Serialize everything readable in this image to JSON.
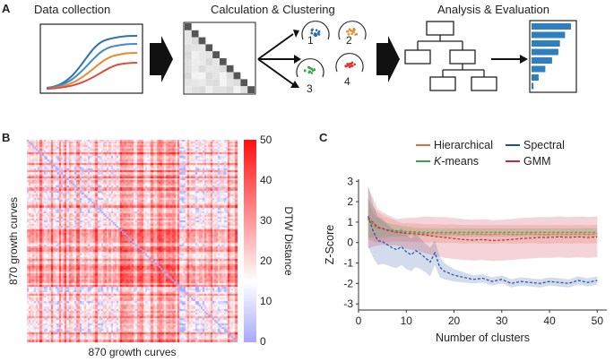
{
  "panelA": {
    "label": "A",
    "stages": [
      "Data collection",
      "Calculation & Clustering",
      "Analysis & Evaluation"
    ],
    "clusters": [
      {
        "id": "1",
        "color": "#2f6db5"
      },
      {
        "id": "2",
        "color": "#ea8a2a"
      },
      {
        "id": "3",
        "color": "#3aa84a"
      },
      {
        "id": "4",
        "color": "#e03030"
      }
    ],
    "curveColors": [
      "#2f6db5",
      "#3b8fc7",
      "#ea8a2a",
      "#e04a3a"
    ],
    "barColor": "#2f7fc0",
    "bars": [
      1.0,
      0.85,
      0.72,
      0.68,
      0.52,
      0.35,
      0.18,
      0.05
    ]
  },
  "panelB": {
    "label": "B",
    "xlabel": "870 growth curves",
    "ylabel": "870 growth curves",
    "colorbar": {
      "title": "DTW Distance",
      "ticks": [
        "50",
        "40",
        "30",
        "20",
        "10",
        "0"
      ],
      "low": "#a8a8ff",
      "mid": "#ffffff",
      "high": "#ff1010"
    }
  },
  "chart_data": {
    "type": "line",
    "title": "",
    "xlabel": "Number of clusters",
    "ylabel": "Z-Score",
    "xlim": [
      0,
      52
    ],
    "ylim": [
      -3.3,
      3.1
    ],
    "xticks": [
      "0",
      "10",
      "20",
      "30",
      "40",
      "50"
    ],
    "yticks": [
      "3",
      "2",
      "1",
      "0",
      "-1",
      "-2",
      "-3"
    ],
    "legend_label": "C",
    "series": [
      {
        "name": "Hierarchical",
        "italic": false,
        "color": "#e07040",
        "x": [
          2,
          3,
          4,
          5,
          6,
          7,
          8,
          9,
          10,
          12,
          14,
          16,
          18,
          20,
          22,
          24,
          26,
          28,
          30,
          32,
          34,
          36,
          38,
          40,
          42,
          44,
          46,
          48,
          50
        ],
        "y": [
          1.2,
          0.9,
          0.75,
          0.68,
          0.62,
          0.6,
          0.55,
          0.5,
          0.5,
          0.48,
          0.45,
          0.45,
          0.42,
          0.44,
          0.4,
          0.42,
          0.4,
          0.4,
          0.42,
          0.4,
          0.4,
          0.42,
          0.4,
          0.4,
          0.42,
          0.4,
          0.42,
          0.4,
          0.42
        ],
        "band": [
          1.0,
          0.85,
          0.75,
          0.65,
          0.6,
          0.55,
          0.5,
          0.45,
          0.45,
          0.45,
          0.45,
          0.45,
          0.45,
          0.45,
          0.45,
          0.45,
          0.45,
          0.45,
          0.45,
          0.45,
          0.45,
          0.45,
          0.45,
          0.45,
          0.45,
          0.45,
          0.45,
          0.45,
          0.45
        ]
      },
      {
        "name": "Spectral",
        "italic": false,
        "color": "#1f4e9e",
        "x": [
          2,
          3,
          4,
          5,
          6,
          7,
          8,
          9,
          10,
          11,
          12,
          13,
          14,
          15,
          16,
          17,
          18,
          19,
          20,
          22,
          24,
          26,
          28,
          30,
          32,
          34,
          36,
          38,
          40,
          42,
          44,
          46,
          48,
          50
        ],
        "y": [
          1.3,
          0.6,
          0.1,
          0.05,
          -0.1,
          -0.25,
          -0.35,
          -0.2,
          -0.45,
          -0.6,
          -0.4,
          -0.55,
          -0.75,
          -0.95,
          -0.5,
          -1.2,
          -1.4,
          -1.5,
          -1.6,
          -1.7,
          -1.8,
          -1.75,
          -1.9,
          -1.8,
          -2.0,
          -1.9,
          -1.95,
          -2.0,
          -1.9,
          -1.95,
          -2.0,
          -1.85,
          -1.95,
          -1.85
        ],
        "band": [
          1.5,
          1.3,
          1.2,
          1.1,
          1.0,
          0.95,
          0.9,
          0.9,
          0.85,
          0.8,
          0.8,
          0.75,
          0.7,
          0.7,
          0.6,
          0.5,
          0.4,
          0.35,
          0.3,
          0.25,
          0.2,
          0.2,
          0.2,
          0.2,
          0.2,
          0.2,
          0.2,
          0.2,
          0.2,
          0.2,
          0.2,
          0.2,
          0.2,
          0.2
        ]
      },
      {
        "name": "K-means",
        "italic": true,
        "color": "#3aa84a",
        "x": [
          2,
          3,
          4,
          5,
          6,
          7,
          8,
          9,
          10,
          12,
          14,
          16,
          18,
          20,
          22,
          24,
          26,
          28,
          30,
          32,
          34,
          36,
          38,
          40,
          42,
          44,
          46,
          48,
          50
        ],
        "y": [
          1.15,
          0.85,
          0.72,
          0.66,
          0.62,
          0.6,
          0.58,
          0.56,
          0.55,
          0.52,
          0.5,
          0.5,
          0.5,
          0.5,
          0.5,
          0.5,
          0.5,
          0.5,
          0.5,
          0.5,
          0.5,
          0.5,
          0.5,
          0.5,
          0.5,
          0.5,
          0.5,
          0.5,
          0.5
        ],
        "band": [
          0.9,
          0.6,
          0.5,
          0.4,
          0.35,
          0.3,
          0.3,
          0.25,
          0.25,
          0.2,
          0.2,
          0.2,
          0.2,
          0.2,
          0.2,
          0.2,
          0.2,
          0.2,
          0.2,
          0.2,
          0.2,
          0.2,
          0.2,
          0.2,
          0.2,
          0.2,
          0.2,
          0.2,
          0.2
        ]
      },
      {
        "name": "GMM",
        "italic": false,
        "color": "#c8283a",
        "x": [
          2,
          3,
          4,
          5,
          6,
          7,
          8,
          9,
          10,
          12,
          14,
          16,
          18,
          20,
          22,
          24,
          26,
          28,
          30,
          32,
          34,
          36,
          38,
          40,
          42,
          44,
          46,
          48,
          50
        ],
        "y": [
          1.2,
          1.0,
          0.75,
          0.7,
          0.6,
          0.55,
          0.5,
          0.48,
          0.45,
          0.42,
          0.38,
          0.3,
          0.25,
          0.2,
          0.15,
          0.12,
          0.15,
          0.1,
          0.12,
          0.15,
          0.2,
          0.22,
          0.25,
          0.25,
          0.28,
          0.25,
          0.28,
          0.25,
          0.28
        ],
        "band": [
          1.5,
          1.2,
          0.9,
          0.8,
          0.75,
          0.7,
          0.65,
          0.7,
          0.75,
          0.8,
          0.9,
          0.95,
          1.0,
          1.0,
          1.0,
          1.0,
          1.0,
          1.0,
          1.0,
          1.0,
          1.0,
          1.0,
          1.0,
          1.0,
          1.0,
          1.0,
          1.0,
          1.0,
          1.0
        ]
      }
    ]
  }
}
